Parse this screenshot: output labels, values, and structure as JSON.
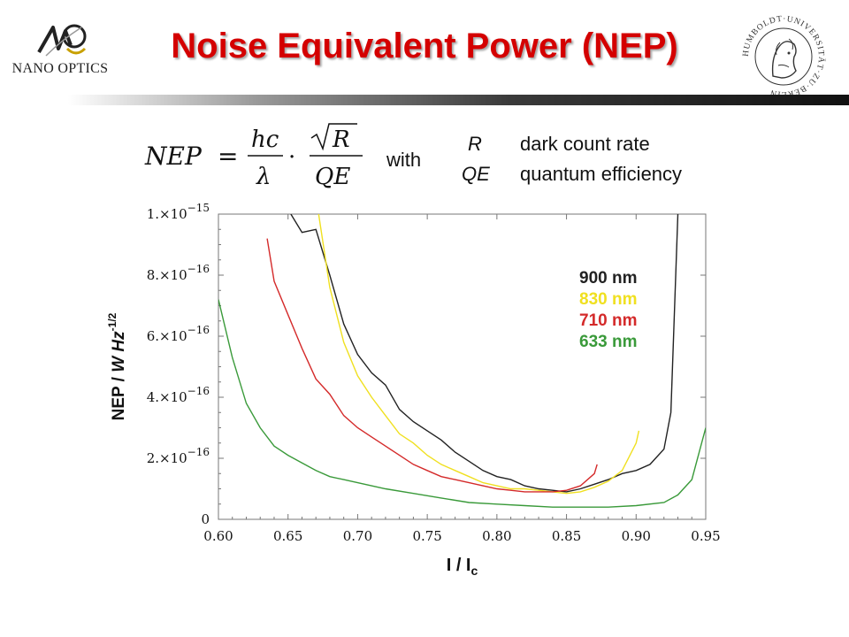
{
  "header": {
    "title": "Noise Equivalent Power (NEP)",
    "logo_left_text": "NANO OPTICS",
    "logo_right_text": "HUMBOLDT·UNIVERSITÄT·ZU·BERLIN",
    "logo_left_icon": "nano-optics-logo-icon",
    "logo_right_icon": "university-seal-icon"
  },
  "definitions": {
    "with": "with",
    "r_symbol": "R",
    "r_meaning": "dark count rate",
    "qe_symbol": "QE",
    "qe_meaning": "quantum efficiency"
  },
  "chart_data": {
    "type": "line",
    "xlabel": "I / I",
    "xlabel_sub": "c",
    "ylabel": "NEP / W Hz",
    "ylabel_sup": "-1/2",
    "xlim": [
      0.6,
      0.95
    ],
    "ylim": [
      0,
      1e-15
    ],
    "xticks": [
      "0.60",
      "0.65",
      "0.70",
      "0.75",
      "0.80",
      "0.85",
      "0.90",
      "0.95"
    ],
    "yticks": [
      {
        "value": 0,
        "mant": "0",
        "exp": ""
      },
      {
        "value": 2e-16,
        "mant": "2.×10",
        "exp": "−16"
      },
      {
        "value": 4e-16,
        "mant": "4.×10",
        "exp": "−16"
      },
      {
        "value": 6e-16,
        "mant": "6.×10",
        "exp": "−16"
      },
      {
        "value": 8e-16,
        "mant": "8.×10",
        "exp": "−16"
      },
      {
        "value": 1e-15,
        "mant": "1.×10",
        "exp": "−15"
      }
    ],
    "grid": false,
    "legend_position": "top-right",
    "series": [
      {
        "name": "900 nm",
        "color": "#222222",
        "x": [
          0.652,
          0.66,
          0.67,
          0.68,
          0.69,
          0.7,
          0.71,
          0.72,
          0.73,
          0.74,
          0.75,
          0.76,
          0.77,
          0.78,
          0.79,
          0.8,
          0.81,
          0.82,
          0.83,
          0.84,
          0.85,
          0.86,
          0.87,
          0.88,
          0.89,
          0.9,
          0.91,
          0.92,
          0.925,
          0.93
        ],
        "y": [
          1e-15,
          9.4e-16,
          9.5e-16,
          8e-16,
          6.4e-16,
          5.4e-16,
          4.8e-16,
          4.4e-16,
          3.6e-16,
          3.2e-16,
          2.9e-16,
          2.6e-16,
          2.2e-16,
          1.9e-16,
          1.6e-16,
          1.4e-16,
          1.3e-16,
          1.1e-16,
          1e-16,
          9.5e-17,
          9e-17,
          1e-16,
          1.15e-16,
          1.3e-16,
          1.5e-16,
          1.6e-16,
          1.8e-16,
          2.3e-16,
          3.5e-16,
          1e-15
        ]
      },
      {
        "name": "830 nm",
        "color": "#f0e020",
        "x": [
          0.672,
          0.68,
          0.69,
          0.7,
          0.71,
          0.72,
          0.73,
          0.74,
          0.75,
          0.76,
          0.77,
          0.78,
          0.79,
          0.8,
          0.81,
          0.82,
          0.83,
          0.84,
          0.85,
          0.86,
          0.87,
          0.88,
          0.89,
          0.9,
          0.902
        ],
        "y": [
          1e-15,
          7.6e-16,
          5.8e-16,
          4.7e-16,
          4e-16,
          3.4e-16,
          2.8e-16,
          2.5e-16,
          2.1e-16,
          1.8e-16,
          1.6e-16,
          1.4e-16,
          1.2e-16,
          1.1e-16,
          1e-16,
          1e-16,
          9.5e-17,
          9e-17,
          8.5e-17,
          9e-17,
          1.05e-16,
          1.25e-16,
          1.6e-16,
          2.5e-16,
          2.9e-16
        ]
      },
      {
        "name": "710 nm",
        "color": "#d42a2a",
        "x": [
          0.635,
          0.64,
          0.65,
          0.66,
          0.67,
          0.68,
          0.69,
          0.7,
          0.71,
          0.72,
          0.73,
          0.74,
          0.75,
          0.76,
          0.77,
          0.78,
          0.79,
          0.8,
          0.81,
          0.82,
          0.83,
          0.84,
          0.85,
          0.86,
          0.87,
          0.872
        ],
        "y": [
          9.2e-16,
          7.8e-16,
          6.7e-16,
          5.6e-16,
          4.6e-16,
          4.1e-16,
          3.4e-16,
          3e-16,
          2.7e-16,
          2.4e-16,
          2.1e-16,
          1.8e-16,
          1.6e-16,
          1.4e-16,
          1.3e-16,
          1.2e-16,
          1.1e-16,
          1e-16,
          9.5e-17,
          9e-17,
          9e-17,
          9e-17,
          9.5e-17,
          1.1e-16,
          1.5e-16,
          1.8e-16
        ]
      },
      {
        "name": "633 nm",
        "color": "#3a9a3a",
        "x": [
          0.6,
          0.61,
          0.62,
          0.63,
          0.64,
          0.65,
          0.66,
          0.67,
          0.68,
          0.69,
          0.7,
          0.72,
          0.74,
          0.76,
          0.78,
          0.8,
          0.82,
          0.84,
          0.86,
          0.88,
          0.9,
          0.92,
          0.93,
          0.94,
          0.95
        ],
        "y": [
          7.2e-16,
          5.3e-16,
          3.8e-16,
          3e-16,
          2.4e-16,
          2.1e-16,
          1.85e-16,
          1.6e-16,
          1.4e-16,
          1.3e-16,
          1.2e-16,
          1e-16,
          8.5e-17,
          7e-17,
          5.5e-17,
          5e-17,
          4.5e-17,
          4e-17,
          4e-17,
          4e-17,
          4.5e-17,
          5.5e-17,
          8e-17,
          1.3e-16,
          3e-16
        ]
      }
    ]
  }
}
